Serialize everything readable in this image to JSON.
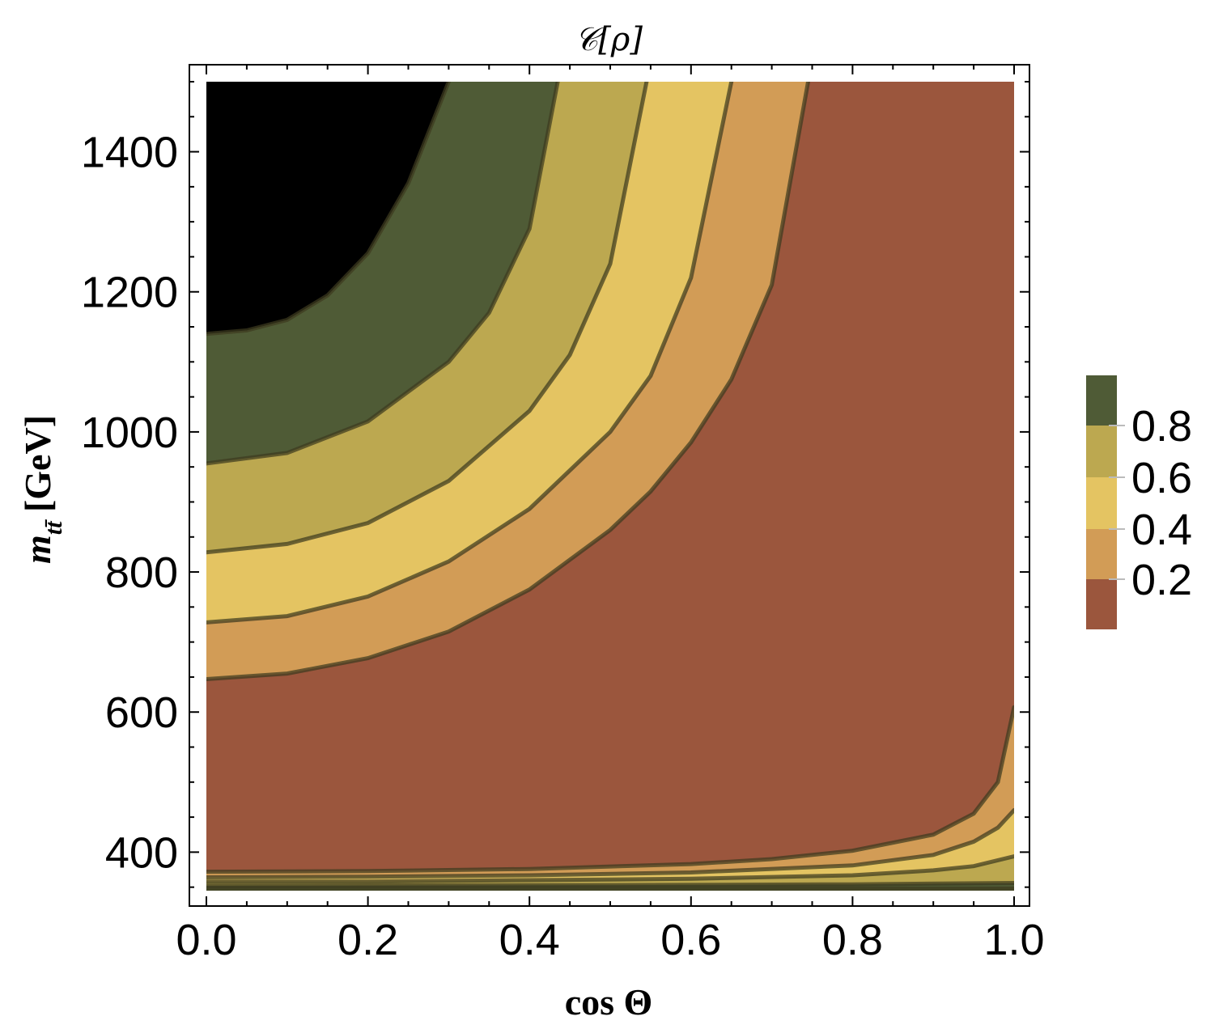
{
  "chart_data": {
    "type": "contour",
    "title": "𝒞[ρ]",
    "xlabel": "cos Θ",
    "ylabel": "m_{tt̄} [GeV]",
    "xlim": [
      0.0,
      1.0
    ],
    "ylim": [
      345,
      1500
    ],
    "x_ticks": [
      0.0,
      0.2,
      0.4,
      0.6,
      0.8,
      1.0
    ],
    "x_tick_labels": [
      "0.0",
      "0.2",
      "0.4",
      "0.6",
      "0.8",
      "1.0"
    ],
    "y_ticks": [
      400,
      600,
      800,
      1000,
      1200,
      1400
    ],
    "y_tick_labels": [
      "400",
      "600",
      "800",
      "1000",
      "1200",
      "1400"
    ],
    "contour_levels": [
      0.2,
      0.4,
      0.6,
      0.8
    ],
    "legend": {
      "type": "colorbar",
      "placement": "right",
      "tick_values": [
        0.2,
        0.4,
        0.6,
        0.8
      ],
      "tick_labels": [
        "0.2",
        "0.4",
        "0.6",
        "0.8"
      ]
    },
    "bands": [
      {
        "range": "< 0.2",
        "color": "#9b563d"
      },
      {
        "range": "0.2 – 0.4",
        "color": "#d29c56"
      },
      {
        "range": "0.4 – 0.6",
        "color": "#e4c462"
      },
      {
        "range": "0.6 – 0.8",
        "color": "#bca850"
      },
      {
        "range": "> 0.8",
        "color": "#4f5b36"
      }
    ],
    "upper_contours": [
      {
        "level": 0.8,
        "points": [
          [
            0.0,
            1140
          ],
          [
            0.05,
            1145
          ],
          [
            0.1,
            1160
          ],
          [
            0.15,
            1195
          ],
          [
            0.2,
            1255
          ],
          [
            0.25,
            1355
          ],
          [
            0.3,
            1500
          ]
        ]
      },
      {
        "level": 0.6,
        "points": [
          [
            0.0,
            955
          ],
          [
            0.1,
            970
          ],
          [
            0.2,
            1015
          ],
          [
            0.3,
            1100
          ],
          [
            0.35,
            1170
          ],
          [
            0.4,
            1290
          ],
          [
            0.435,
            1500
          ]
        ]
      },
      {
        "level": 0.4,
        "points": [
          [
            0.0,
            828
          ],
          [
            0.1,
            840
          ],
          [
            0.2,
            870
          ],
          [
            0.3,
            930
          ],
          [
            0.4,
            1030
          ],
          [
            0.45,
            1110
          ],
          [
            0.5,
            1240
          ],
          [
            0.545,
            1500
          ]
        ]
      },
      {
        "level": 0.2,
        "points": [
          [
            0.0,
            728
          ],
          [
            0.1,
            737
          ],
          [
            0.2,
            765
          ],
          [
            0.3,
            815
          ],
          [
            0.4,
            890
          ],
          [
            0.5,
            1000
          ],
          [
            0.55,
            1080
          ],
          [
            0.6,
            1220
          ],
          [
            0.65,
            1500
          ]
        ]
      },
      {
        "level": 0.0,
        "points": [
          [
            0.0,
            647
          ],
          [
            0.1,
            655
          ],
          [
            0.2,
            677
          ],
          [
            0.3,
            715
          ],
          [
            0.4,
            775
          ],
          [
            0.5,
            860
          ],
          [
            0.55,
            915
          ],
          [
            0.6,
            985
          ],
          [
            0.65,
            1075
          ],
          [
            0.7,
            1210
          ],
          [
            0.745,
            1500
          ]
        ]
      }
    ],
    "lower_contours": [
      {
        "level": 0.0,
        "points": [
          [
            0.0,
            372
          ],
          [
            0.2,
            373
          ],
          [
            0.4,
            376
          ],
          [
            0.6,
            383
          ],
          [
            0.7,
            390
          ],
          [
            0.8,
            402
          ],
          [
            0.9,
            425
          ],
          [
            0.95,
            455
          ],
          [
            0.98,
            500
          ],
          [
            1.0,
            607
          ]
        ]
      },
      {
        "level": 0.2,
        "points": [
          [
            0.0,
            364
          ],
          [
            0.2,
            365
          ],
          [
            0.4,
            367
          ],
          [
            0.6,
            371
          ],
          [
            0.8,
            381
          ],
          [
            0.9,
            396
          ],
          [
            0.95,
            415
          ],
          [
            0.98,
            435
          ],
          [
            1.0,
            460
          ]
        ]
      },
      {
        "level": 0.4,
        "points": [
          [
            0.0,
            358
          ],
          [
            0.2,
            358
          ],
          [
            0.4,
            360
          ],
          [
            0.6,
            362
          ],
          [
            0.8,
            367
          ],
          [
            0.9,
            374
          ],
          [
            0.95,
            380
          ],
          [
            1.0,
            394
          ]
        ]
      },
      {
        "level": 0.6,
        "points": [
          [
            0.0,
            352
          ],
          [
            0.5,
            353
          ],
          [
            0.8,
            354
          ],
          [
            1.0,
            356
          ]
        ]
      },
      {
        "level": 0.8,
        "points": [
          [
            0.0,
            348
          ],
          [
            1.0,
            348
          ]
        ]
      }
    ]
  }
}
